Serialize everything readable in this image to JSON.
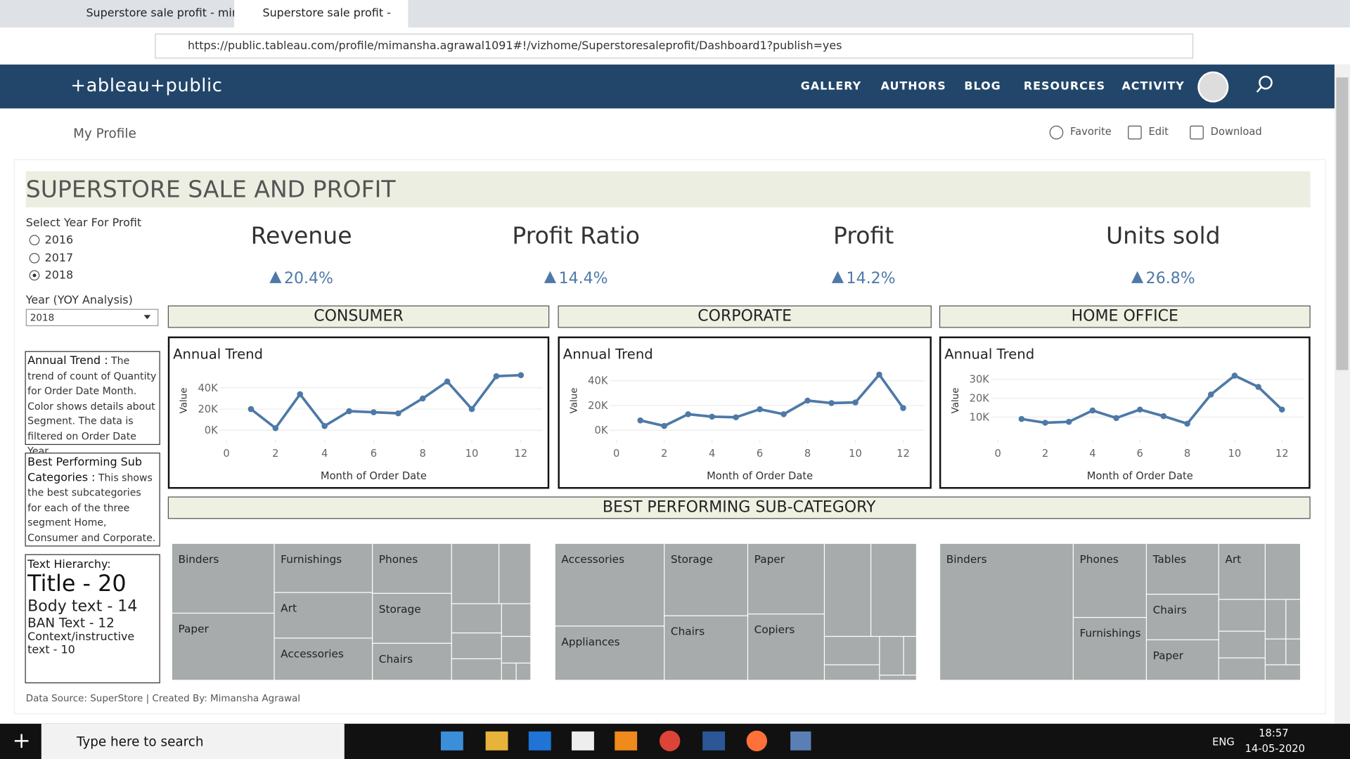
{
  "browser": {
    "tabs": [
      "Superstore sale profit - mim",
      "Superstore sale profit -"
    ],
    "url": "https://public.tableau.com/profile/mimansha.agrawal1091#!/vizhome/Superstoresaleprofit/Dashboard1?publish=yes"
  },
  "header": {
    "logo": "+ableau+public",
    "nav": [
      "GALLERY",
      "AUTHORS",
      "BLOG",
      "RESOURCES",
      "ACTIVITY"
    ]
  },
  "toolbar": {
    "back": "My Profile",
    "actions": [
      "Favorite",
      "Edit",
      "Download"
    ]
  },
  "dashboard": {
    "title": "SUPERSTORE SALE AND PROFIT",
    "year_filter": {
      "label": "Select Year For Profit",
      "options": [
        "2016",
        "2017",
        "2018"
      ],
      "selected_index": 2
    },
    "yoy": {
      "label": "Year (YOY Analysis)",
      "value": "2018"
    },
    "notes": [
      {
        "heading": "Annual Trend :",
        "body": "The trend of count of Quantity for Order Date Month.  Color shows details about Segment. The data is filtered on Order Date Year."
      },
      {
        "heading": "Best Performing Sub Categories :",
        "body": "This shows the best subcategories for each of the three segment Home, Consumer and Corporate."
      }
    ],
    "hierarchy": {
      "heading": "Text Hierarchy:",
      "items": [
        "Title - 20",
        "Body text - 14",
        "BAN Text - 12",
        "Context/instructive text - 10"
      ]
    },
    "kpis": [
      {
        "title": "Revenue",
        "value": "20.4%"
      },
      {
        "title": "Profit Ratio",
        "value": "14.4%"
      },
      {
        "title": "Profit",
        "value": "14.2%"
      },
      {
        "title": "Units sold",
        "value": "26.8%"
      }
    ],
    "segments": [
      "CONSUMER",
      "CORPORATE",
      "HOME OFFICE"
    ],
    "treemap_title": "BEST PERFORMING SUB-CATEGORY",
    "treemaps": [
      [
        "Binders",
        "Paper",
        "Furnishings",
        "Art",
        "Accessories",
        "Phones",
        "Storage",
        "Chairs"
      ],
      [
        "Accessories",
        "Appliances",
        "Storage",
        "Chairs",
        "Paper",
        "Copiers"
      ],
      [
        "Binders",
        "Phones",
        "Furnishings",
        "Tables",
        "Chairs",
        "Paper",
        "Art"
      ]
    ],
    "footer": "Data Source: SuperStore | Created By: Mimansha Agrawal"
  },
  "chart_data": [
    {
      "type": "line",
      "title": "Annual Trend",
      "x_label": "Month of Order Date",
      "y_label": "Value",
      "x": [
        1,
        2,
        3,
        4,
        5,
        6,
        7,
        8,
        9,
        10,
        11,
        12
      ],
      "values": [
        20000,
        2000,
        34000,
        4000,
        18000,
        17000,
        16000,
        30000,
        46000,
        20000,
        51000,
        52000
      ],
      "color": "#4e79a7",
      "xlim": [
        0,
        12
      ],
      "xticks": [
        0,
        2,
        4,
        6,
        8,
        10,
        12
      ],
      "ylim": [
        0,
        56000
      ],
      "yticks": [
        {
          "value": 0,
          "label": "0K"
        },
        {
          "value": 20000,
          "label": "20K"
        },
        {
          "value": 40000,
          "label": "40K"
        }
      ],
      "grid": true
    },
    {
      "type": "line",
      "title": "Annual Trend",
      "x_label": "Month of Order Date",
      "y_label": "Value",
      "x": [
        1,
        2,
        3,
        4,
        5,
        6,
        7,
        8,
        9,
        10,
        11,
        12
      ],
      "values": [
        8000,
        3500,
        13000,
        11000,
        10500,
        17000,
        13000,
        24000,
        22000,
        22500,
        45000,
        18000
      ],
      "color": "#4e79a7",
      "xlim": [
        0,
        12
      ],
      "xticks": [
        0,
        2,
        4,
        6,
        8,
        10,
        12
      ],
      "ylim": [
        0,
        48000
      ],
      "yticks": [
        {
          "value": 0,
          "label": "0K"
        },
        {
          "value": 20000,
          "label": "20K"
        },
        {
          "value": 40000,
          "label": "40K"
        }
      ],
      "grid": true
    },
    {
      "type": "line",
      "title": "Annual Trend",
      "x_label": "Month of Order Date",
      "y_label": "Value",
      "x": [
        1,
        2,
        3,
        4,
        5,
        6,
        7,
        8,
        9,
        10,
        11,
        12
      ],
      "values": [
        9000,
        7000,
        7500,
        13500,
        9500,
        14000,
        10500,
        6500,
        22000,
        32000,
        26000,
        14000
      ],
      "color": "#4e79a7",
      "xlim": [
        0,
        12
      ],
      "xticks": [
        0,
        2,
        4,
        6,
        8,
        10,
        12
      ],
      "ylim": [
        3000,
        34500
      ],
      "yticks": [
        {
          "value": 10000,
          "label": "10K"
        },
        {
          "value": 20000,
          "label": "20K"
        },
        {
          "value": 30000,
          "label": "30K"
        }
      ],
      "grid": true
    }
  ],
  "taskbar": {
    "search": "Type here to search",
    "lang": "ENG",
    "time": "18:57",
    "date": "14-05-2020"
  }
}
